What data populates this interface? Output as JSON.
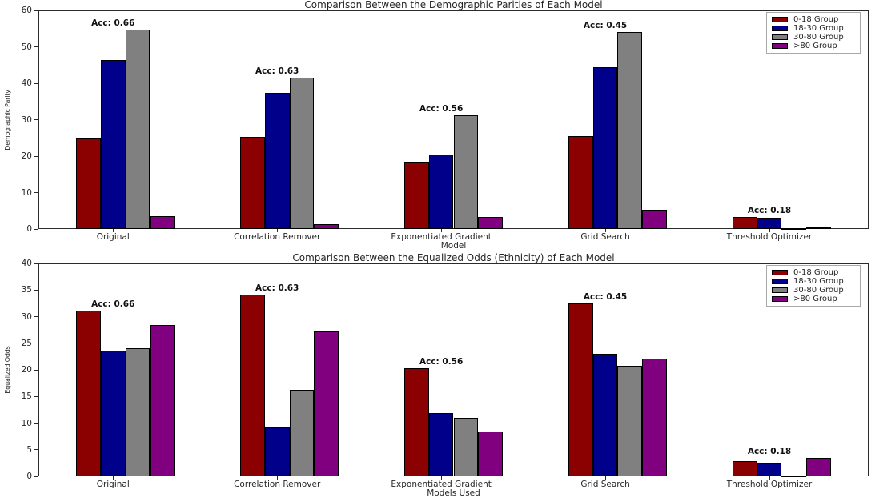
{
  "figure_name": "model-fairness-comparison-figure",
  "chart_data": [
    {
      "type": "bar",
      "title": "Comparison Between the Demographic Parities of Each Model",
      "xlabel": "Model",
      "ylabel": "Demographic Parity",
      "ylim": [
        0,
        60
      ],
      "yticks": [
        0,
        10,
        20,
        30,
        40,
        50,
        60
      ],
      "grid": false,
      "legend_position": "upper right",
      "categories": [
        "Original",
        "Correlation Remover",
        "Exponentiated Gradient",
        "Grid Search",
        "Threshold Optimizer"
      ],
      "series": [
        {
          "name": "0-18 Group",
          "color": "#8B0000",
          "values": [
            25.0,
            25.3,
            18.4,
            25.5,
            3.4
          ]
        },
        {
          "name": "18-30 Group",
          "color": "#00008B",
          "values": [
            46.3,
            37.3,
            20.5,
            44.3,
            3.0
          ]
        },
        {
          "name": "30-80 Group",
          "color": "#808080",
          "values": [
            54.8,
            41.6,
            31.2,
            54.0,
            0.15
          ]
        },
        {
          "name": ">80 Group",
          "color": "#800080",
          "values": [
            3.5,
            1.4,
            3.2,
            5.3,
            0.5
          ]
        }
      ],
      "annotations": [
        {
          "category": "Original",
          "text": "Acc: 0.66"
        },
        {
          "category": "Correlation Remover",
          "text": "Acc: 0.63"
        },
        {
          "category": "Exponentiated Gradient",
          "text": "Acc: 0.56"
        },
        {
          "category": "Grid Search",
          "text": "Acc: 0.45"
        },
        {
          "category": "Threshold Optimizer",
          "text": "Acc: 0.18"
        }
      ]
    },
    {
      "type": "bar",
      "title": "Comparison Between the Equalized Odds (Ethnicity) of Each Model",
      "xlabel": "Models Used",
      "ylabel": "Equalized Odds",
      "ylim": [
        0,
        40
      ],
      "yticks": [
        0,
        5,
        10,
        15,
        20,
        25,
        30,
        35,
        40
      ],
      "grid": false,
      "legend_position": "upper right",
      "categories": [
        "Original",
        "Correlation Remover",
        "Exponentiated Gradient",
        "Grid Search",
        "Threshold Optimizer"
      ],
      "series": [
        {
          "name": "0-18 Group",
          "color": "#8B0000",
          "values": [
            31.2,
            34.1,
            20.3,
            32.5,
            2.8
          ]
        },
        {
          "name": "18-30 Group",
          "color": "#00008B",
          "values": [
            23.6,
            9.3,
            11.9,
            23.0,
            2.5
          ]
        },
        {
          "name": "30-80 Group",
          "color": "#808080",
          "values": [
            24.0,
            16.3,
            11.0,
            20.8,
            0.15
          ]
        },
        {
          "name": ">80 Group",
          "color": "#800080",
          "values": [
            28.4,
            27.2,
            8.4,
            22.1,
            3.4
          ]
        }
      ],
      "annotations": [
        {
          "category": "Original",
          "text": "Acc: 0.66"
        },
        {
          "category": "Correlation Remover",
          "text": "Acc: 0.63"
        },
        {
          "category": "Exponentiated Gradient",
          "text": "Acc: 0.56"
        },
        {
          "category": "Grid Search",
          "text": "Acc: 0.45"
        },
        {
          "category": "Threshold Optimizer",
          "text": "Acc: 0.18"
        }
      ]
    }
  ]
}
